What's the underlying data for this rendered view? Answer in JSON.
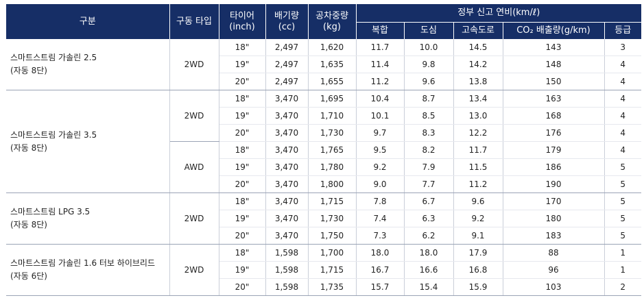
{
  "header": {
    "category": "구분",
    "drive_type": "구동 타입",
    "tire": [
      "타이어",
      "(inch)"
    ],
    "displacement": [
      "배기량",
      "(cc)"
    ],
    "curb_weight": [
      "공차중량",
      "(kg)"
    ],
    "fuel_economy": "정부 신고 연비(km/ℓ)",
    "combined": "복합",
    "city": "도심",
    "highway": "고속도로",
    "co2": "CO₂ 배출량(g/km)",
    "grade": "등급"
  },
  "groups": [
    {
      "name": [
        "스마트스트림 가솔린 2.5",
        "(자동 8단)"
      ],
      "drives": [
        {
          "drive": "2WD",
          "rows": [
            {
              "tire": "18\"",
              "cc": "2,497",
              "kg": "1,620",
              "comb": "11.7",
              "city": "10.0",
              "hwy": "14.5",
              "co2": "143",
              "grade": "3"
            },
            {
              "tire": "19\"",
              "cc": "2,497",
              "kg": "1,635",
              "comb": "11.4",
              "city": "9.8",
              "hwy": "14.2",
              "co2": "148",
              "grade": "4"
            },
            {
              "tire": "20\"",
              "cc": "2,497",
              "kg": "1,655",
              "comb": "11.2",
              "city": "9.6",
              "hwy": "13.8",
              "co2": "150",
              "grade": "4"
            }
          ]
        }
      ]
    },
    {
      "name": [
        "스마트스트림 가솔린 3.5",
        "(자동 8단)"
      ],
      "drives": [
        {
          "drive": "2WD",
          "rows": [
            {
              "tire": "18\"",
              "cc": "3,470",
              "kg": "1,695",
              "comb": "10.4",
              "city": "8.7",
              "hwy": "13.4",
              "co2": "163",
              "grade": "4"
            },
            {
              "tire": "19\"",
              "cc": "3,470",
              "kg": "1,710",
              "comb": "10.1",
              "city": "8.5",
              "hwy": "13.0",
              "co2": "168",
              "grade": "4"
            },
            {
              "tire": "20\"",
              "cc": "3,470",
              "kg": "1,730",
              "comb": "9.7",
              "city": "8.3",
              "hwy": "12.2",
              "co2": "176",
              "grade": "4"
            }
          ]
        },
        {
          "drive": "AWD",
          "rows": [
            {
              "tire": "18\"",
              "cc": "3,470",
              "kg": "1,765",
              "comb": "9.5",
              "city": "8.2",
              "hwy": "11.7",
              "co2": "179",
              "grade": "4"
            },
            {
              "tire": "19\"",
              "cc": "3,470",
              "kg": "1,780",
              "comb": "9.2",
              "city": "7.9",
              "hwy": "11.5",
              "co2": "186",
              "grade": "5"
            },
            {
              "tire": "20\"",
              "cc": "3,470",
              "kg": "1,800",
              "comb": "9.0",
              "city": "7.7",
              "hwy": "11.2",
              "co2": "190",
              "grade": "5"
            }
          ]
        }
      ]
    },
    {
      "name": [
        "스마트스트림 LPG 3.5",
        "(자동 8단)"
      ],
      "drives": [
        {
          "drive": "2WD",
          "rows": [
            {
              "tire": "18\"",
              "cc": "3,470",
              "kg": "1,715",
              "comb": "7.8",
              "city": "6.7",
              "hwy": "9.6",
              "co2": "170",
              "grade": "5"
            },
            {
              "tire": "19\"",
              "cc": "3,470",
              "kg": "1,730",
              "comb": "7.4",
              "city": "6.3",
              "hwy": "9.2",
              "co2": "180",
              "grade": "5"
            },
            {
              "tire": "20\"",
              "cc": "3,470",
              "kg": "1,750",
              "comb": "7.3",
              "city": "6.2",
              "hwy": "9.1",
              "co2": "183",
              "grade": "5"
            }
          ]
        }
      ]
    },
    {
      "name": [
        "스마트스트림 가솔린 1.6 터보 하이브리드",
        "(자동 6단)"
      ],
      "drives": [
        {
          "drive": "2WD",
          "rows": [
            {
              "tire": "18\"",
              "cc": "1,598",
              "kg": "1,700",
              "comb": "18.0",
              "city": "18.0",
              "hwy": "17.9",
              "co2": "88",
              "grade": "1"
            },
            {
              "tire": "19\"",
              "cc": "1,598",
              "kg": "1,715",
              "comb": "16.7",
              "city": "16.6",
              "hwy": "16.8",
              "co2": "96",
              "grade": "1"
            },
            {
              "tire": "20\"",
              "cc": "1,598",
              "kg": "1,735",
              "comb": "15.7",
              "city": "15.4",
              "hwy": "15.9",
              "co2": "103",
              "grade": "2"
            }
          ]
        }
      ]
    }
  ]
}
